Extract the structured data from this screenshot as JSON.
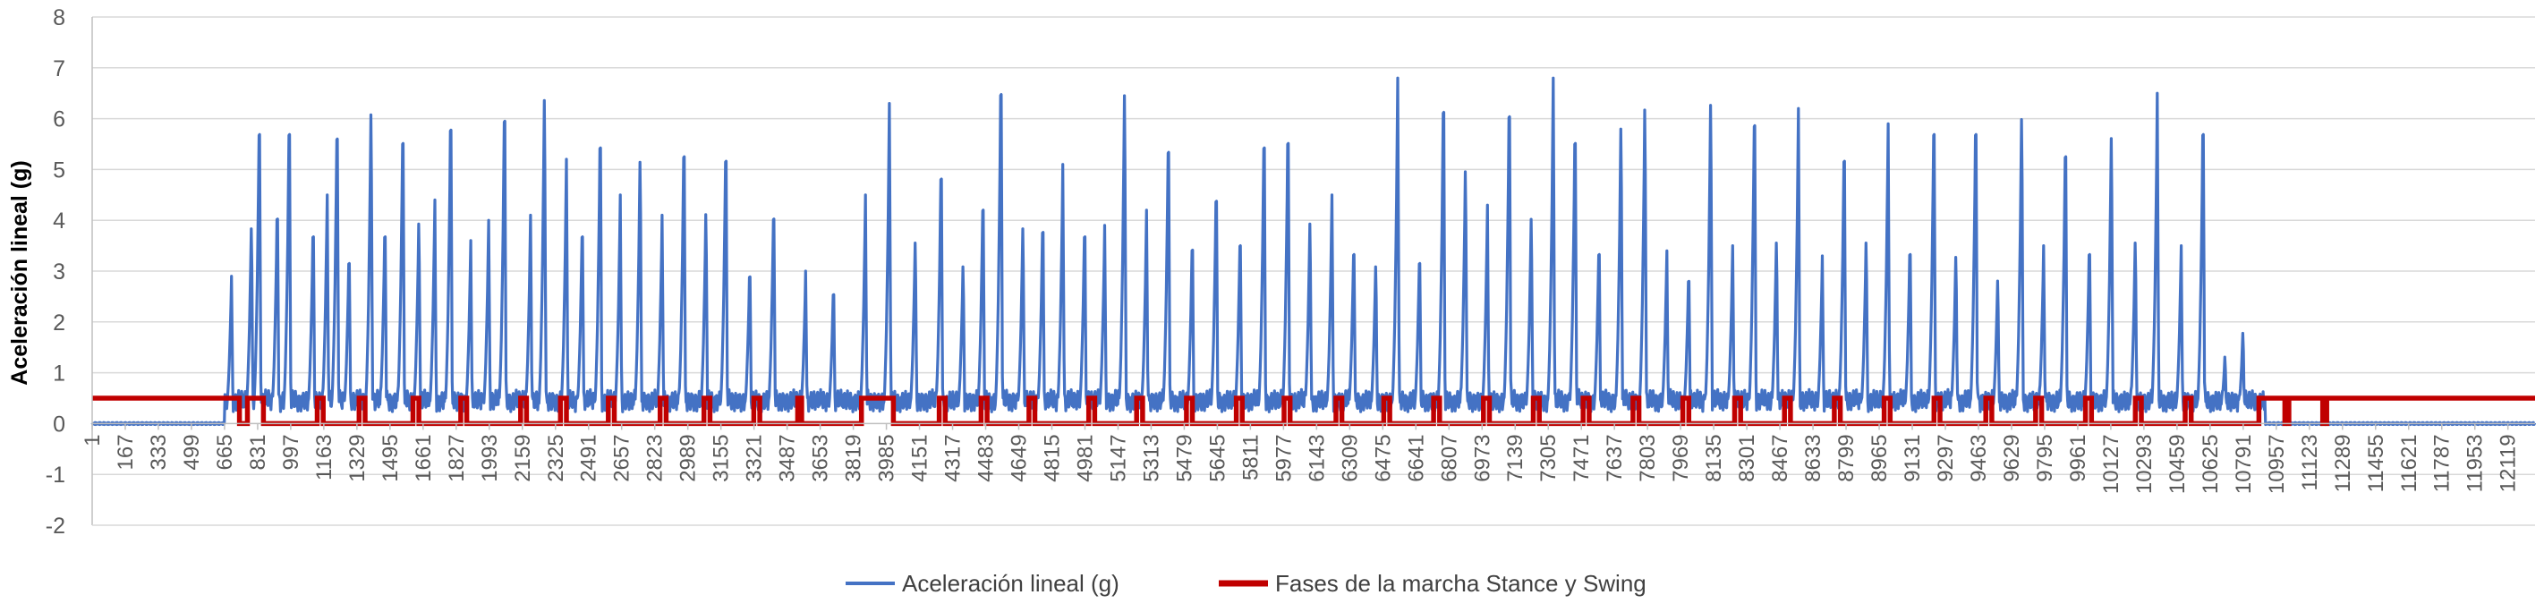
{
  "chart_data": {
    "type": "line",
    "xlabel": "",
    "ylabel": "Aceleración lineal (g)",
    "ylim": [
      -2,
      8
    ],
    "yticks": [
      -2,
      -1,
      0,
      1,
      2,
      3,
      4,
      5,
      6,
      7,
      8
    ],
    "xlim": [
      1,
      12255
    ],
    "xticks": [
      1,
      167,
      333,
      499,
      665,
      831,
      997,
      1163,
      1329,
      1495,
      1661,
      1827,
      1993,
      2159,
      2325,
      2491,
      2657,
      2823,
      2989,
      3155,
      3321,
      3487,
      3653,
      3819,
      3985,
      4151,
      4317,
      4483,
      4649,
      4815,
      4981,
      5147,
      5313,
      5479,
      5645,
      5811,
      5977,
      6143,
      6309,
      6475,
      6641,
      6807,
      6973,
      7139,
      7305,
      7471,
      7637,
      7803,
      7969,
      8135,
      8301,
      8467,
      8633,
      8799,
      8965,
      9131,
      9297,
      9463,
      9629,
      9795,
      9961,
      10127,
      10293,
      10459,
      10625,
      10791,
      10957,
      11123,
      11289,
      11455,
      11621,
      11787,
      11953,
      12119
    ],
    "gridlines": true,
    "legend_position": "bottom",
    "series": [
      {
        "name": "Aceleración lineal (g)",
        "color": "#4472C4",
        "baseline": 0.0,
        "active_range": [
          665,
          10900
        ],
        "peaks": [
          {
            "x": 700,
            "y": 2.9
          },
          {
            "x": 800,
            "y": 4.1
          },
          {
            "x": 840,
            "y": 6.5
          },
          {
            "x": 930,
            "y": 4.6
          },
          {
            "x": 990,
            "y": 6.5
          },
          {
            "x": 1110,
            "y": 4.2
          },
          {
            "x": 1180,
            "y": 4.5
          },
          {
            "x": 1230,
            "y": 6.4
          },
          {
            "x": 1290,
            "y": 3.6
          },
          {
            "x": 1400,
            "y": 6.5
          },
          {
            "x": 1470,
            "y": 4.2
          },
          {
            "x": 1560,
            "y": 6.3
          },
          {
            "x": 1640,
            "y": 4.2
          },
          {
            "x": 1720,
            "y": 4.4
          },
          {
            "x": 1800,
            "y": 6.6
          },
          {
            "x": 1900,
            "y": 3.6
          },
          {
            "x": 1990,
            "y": 4.0
          },
          {
            "x": 2070,
            "y": 6.8
          },
          {
            "x": 2200,
            "y": 4.1
          },
          {
            "x": 2270,
            "y": 6.8
          },
          {
            "x": 2380,
            "y": 5.2
          },
          {
            "x": 2460,
            "y": 4.2
          },
          {
            "x": 2550,
            "y": 6.2
          },
          {
            "x": 2650,
            "y": 4.5
          },
          {
            "x": 2750,
            "y": 5.5
          },
          {
            "x": 2860,
            "y": 4.1
          },
          {
            "x": 2970,
            "y": 6.0
          },
          {
            "x": 3080,
            "y": 4.4
          },
          {
            "x": 3180,
            "y": 5.9
          },
          {
            "x": 3300,
            "y": 3.3
          },
          {
            "x": 3420,
            "y": 4.6
          },
          {
            "x": 3580,
            "y": 3.0
          },
          {
            "x": 3720,
            "y": 2.9
          },
          {
            "x": 3880,
            "y": 4.5
          },
          {
            "x": 4000,
            "y": 6.3
          },
          {
            "x": 4130,
            "y": 3.8
          },
          {
            "x": 4260,
            "y": 5.5
          },
          {
            "x": 4370,
            "y": 3.3
          },
          {
            "x": 4470,
            "y": 4.8
          },
          {
            "x": 4560,
            "y": 7.4
          },
          {
            "x": 4670,
            "y": 4.1
          },
          {
            "x": 4770,
            "y": 4.3
          },
          {
            "x": 4870,
            "y": 5.1
          },
          {
            "x": 4980,
            "y": 4.2
          },
          {
            "x": 5080,
            "y": 3.9
          },
          {
            "x": 5180,
            "y": 6.9
          },
          {
            "x": 5290,
            "y": 4.2
          },
          {
            "x": 5400,
            "y": 6.1
          },
          {
            "x": 5520,
            "y": 3.9
          },
          {
            "x": 5640,
            "y": 5.0
          },
          {
            "x": 5760,
            "y": 4.0
          },
          {
            "x": 5880,
            "y": 6.2
          },
          {
            "x": 6000,
            "y": 6.3
          },
          {
            "x": 6110,
            "y": 4.2
          },
          {
            "x": 6220,
            "y": 4.5
          },
          {
            "x": 6330,
            "y": 3.8
          },
          {
            "x": 6440,
            "y": 3.3
          },
          {
            "x": 6550,
            "y": 6.8
          },
          {
            "x": 6660,
            "y": 3.6
          },
          {
            "x": 6780,
            "y": 7.0
          },
          {
            "x": 6890,
            "y": 5.3
          },
          {
            "x": 7000,
            "y": 4.3
          },
          {
            "x": 7110,
            "y": 6.9
          },
          {
            "x": 7220,
            "y": 4.3
          },
          {
            "x": 7330,
            "y": 6.8
          },
          {
            "x": 7440,
            "y": 6.3
          },
          {
            "x": 7560,
            "y": 3.8
          },
          {
            "x": 7670,
            "y": 6.2
          },
          {
            "x": 7790,
            "y": 6.6
          },
          {
            "x": 7900,
            "y": 3.4
          },
          {
            "x": 8010,
            "y": 3.2
          },
          {
            "x": 8120,
            "y": 6.7
          },
          {
            "x": 8230,
            "y": 3.5
          },
          {
            "x": 8340,
            "y": 6.7
          },
          {
            "x": 8450,
            "y": 3.8
          },
          {
            "x": 8560,
            "y": 6.2
          },
          {
            "x": 8680,
            "y": 3.3
          },
          {
            "x": 8790,
            "y": 5.9
          },
          {
            "x": 8900,
            "y": 3.8
          },
          {
            "x": 9010,
            "y": 5.9
          },
          {
            "x": 9120,
            "y": 3.8
          },
          {
            "x": 9240,
            "y": 6.5
          },
          {
            "x": 9350,
            "y": 3.5
          },
          {
            "x": 9450,
            "y": 6.5
          },
          {
            "x": 9560,
            "y": 3.0
          },
          {
            "x": 9680,
            "y": 6.4
          },
          {
            "x": 9790,
            "y": 3.5
          },
          {
            "x": 9900,
            "y": 6.0
          },
          {
            "x": 10020,
            "y": 3.8
          },
          {
            "x": 10130,
            "y": 6.0
          },
          {
            "x": 10250,
            "y": 3.8
          },
          {
            "x": 10360,
            "y": 6.5
          },
          {
            "x": 10480,
            "y": 3.5
          },
          {
            "x": 10590,
            "y": 6.5
          },
          {
            "x": 10700,
            "y": 1.4
          },
          {
            "x": 10790,
            "y": 1.9
          }
        ]
      },
      {
        "name": "Fases de la marcha Stance y Swing",
        "color": "#C00000",
        "segments": [
          {
            "x0": 1,
            "x1": 740,
            "y": 0.5
          },
          {
            "x0": 740,
            "x1": 780,
            "y": 0.0
          },
          {
            "x0": 780,
            "x1": 860,
            "y": 0.5
          },
          {
            "x0": 860,
            "x1": 1130,
            "y": 0.0
          },
          {
            "x0": 1130,
            "x1": 1160,
            "y": 0.5
          },
          {
            "x0": 1160,
            "x1": 1340,
            "y": 0.0
          },
          {
            "x0": 1340,
            "x1": 1370,
            "y": 0.5
          },
          {
            "x0": 1370,
            "x1": 1610,
            "y": 0.0
          },
          {
            "x0": 1610,
            "x1": 1640,
            "y": 0.5
          },
          {
            "x0": 1640,
            "x1": 1850,
            "y": 0.0
          },
          {
            "x0": 1850,
            "x1": 1880,
            "y": 0.5
          },
          {
            "x0": 1880,
            "x1": 2150,
            "y": 0.0
          },
          {
            "x0": 2150,
            "x1": 2180,
            "y": 0.5
          },
          {
            "x0": 2180,
            "x1": 2350,
            "y": 0.0
          },
          {
            "x0": 2350,
            "x1": 2380,
            "y": 0.5
          },
          {
            "x0": 2380,
            "x1": 2590,
            "y": 0.0
          },
          {
            "x0": 2590,
            "x1": 2620,
            "y": 0.5
          },
          {
            "x0": 2620,
            "x1": 2850,
            "y": 0.0
          },
          {
            "x0": 2850,
            "x1": 2880,
            "y": 0.5
          },
          {
            "x0": 2880,
            "x1": 3070,
            "y": 0.0
          },
          {
            "x0": 3070,
            "x1": 3100,
            "y": 0.5
          },
          {
            "x0": 3100,
            "x1": 3320,
            "y": 0.0
          },
          {
            "x0": 3320,
            "x1": 3350,
            "y": 0.5
          },
          {
            "x0": 3350,
            "x1": 3540,
            "y": 0.0
          },
          {
            "x0": 3540,
            "x1": 3560,
            "y": 0.5
          },
          {
            "x0": 3560,
            "x1": 3860,
            "y": 0.0
          },
          {
            "x0": 3860,
            "x1": 4020,
            "y": 0.5
          },
          {
            "x0": 4020,
            "x1": 4250,
            "y": 0.0
          },
          {
            "x0": 4250,
            "x1": 4280,
            "y": 0.5
          },
          {
            "x0": 4280,
            "x1": 4460,
            "y": 0.0
          },
          {
            "x0": 4460,
            "x1": 4490,
            "y": 0.5
          },
          {
            "x0": 4490,
            "x1": 4700,
            "y": 0.0
          },
          {
            "x0": 4700,
            "x1": 4730,
            "y": 0.5
          },
          {
            "x0": 4730,
            "x1": 5000,
            "y": 0.0
          },
          {
            "x0": 5000,
            "x1": 5030,
            "y": 0.5
          },
          {
            "x0": 5030,
            "x1": 5240,
            "y": 0.0
          },
          {
            "x0": 5240,
            "x1": 5270,
            "y": 0.5
          },
          {
            "x0": 5270,
            "x1": 5490,
            "y": 0.0
          },
          {
            "x0": 5490,
            "x1": 5520,
            "y": 0.5
          },
          {
            "x0": 5520,
            "x1": 5740,
            "y": 0.0
          },
          {
            "x0": 5740,
            "x1": 5770,
            "y": 0.5
          },
          {
            "x0": 5770,
            "x1": 5980,
            "y": 0.0
          },
          {
            "x0": 5980,
            "x1": 6010,
            "y": 0.5
          },
          {
            "x0": 6010,
            "x1": 6240,
            "y": 0.0
          },
          {
            "x0": 6240,
            "x1": 6270,
            "y": 0.5
          },
          {
            "x0": 6270,
            "x1": 6480,
            "y": 0.0
          },
          {
            "x0": 6480,
            "x1": 6510,
            "y": 0.5
          },
          {
            "x0": 6510,
            "x1": 6730,
            "y": 0.0
          },
          {
            "x0": 6730,
            "x1": 6760,
            "y": 0.5
          },
          {
            "x0": 6760,
            "x1": 6980,
            "y": 0.0
          },
          {
            "x0": 6980,
            "x1": 7010,
            "y": 0.5
          },
          {
            "x0": 7010,
            "x1": 7230,
            "y": 0.0
          },
          {
            "x0": 7230,
            "x1": 7260,
            "y": 0.5
          },
          {
            "x0": 7260,
            "x1": 7480,
            "y": 0.0
          },
          {
            "x0": 7480,
            "x1": 7510,
            "y": 0.5
          },
          {
            "x0": 7510,
            "x1": 7730,
            "y": 0.0
          },
          {
            "x0": 7730,
            "x1": 7760,
            "y": 0.5
          },
          {
            "x0": 7760,
            "x1": 7980,
            "y": 0.0
          },
          {
            "x0": 7980,
            "x1": 8010,
            "y": 0.5
          },
          {
            "x0": 8010,
            "x1": 8240,
            "y": 0.0
          },
          {
            "x0": 8240,
            "x1": 8270,
            "y": 0.5
          },
          {
            "x0": 8270,
            "x1": 8490,
            "y": 0.0
          },
          {
            "x0": 8490,
            "x1": 8520,
            "y": 0.5
          },
          {
            "x0": 8520,
            "x1": 8740,
            "y": 0.0
          },
          {
            "x0": 8740,
            "x1": 8770,
            "y": 0.5
          },
          {
            "x0": 8770,
            "x1": 8990,
            "y": 0.0
          },
          {
            "x0": 8990,
            "x1": 9020,
            "y": 0.5
          },
          {
            "x0": 9020,
            "x1": 9240,
            "y": 0.0
          },
          {
            "x0": 9240,
            "x1": 9270,
            "y": 0.5
          },
          {
            "x0": 9270,
            "x1": 9500,
            "y": 0.0
          },
          {
            "x0": 9500,
            "x1": 9530,
            "y": 0.5
          },
          {
            "x0": 9530,
            "x1": 9750,
            "y": 0.0
          },
          {
            "x0": 9750,
            "x1": 9780,
            "y": 0.5
          },
          {
            "x0": 9780,
            "x1": 10000,
            "y": 0.0
          },
          {
            "x0": 10000,
            "x1": 10030,
            "y": 0.5
          },
          {
            "x0": 10030,
            "x1": 10250,
            "y": 0.0
          },
          {
            "x0": 10250,
            "x1": 10280,
            "y": 0.5
          },
          {
            "x0": 10280,
            "x1": 10500,
            "y": 0.0
          },
          {
            "x0": 10500,
            "x1": 10530,
            "y": 0.5
          },
          {
            "x0": 10530,
            "x1": 10870,
            "y": 0.0
          },
          {
            "x0": 10870,
            "x1": 11000,
            "y": 0.5
          },
          {
            "x0": 11000,
            "x1": 11020,
            "y": 0.0
          },
          {
            "x0": 11020,
            "x1": 11190,
            "y": 0.5
          },
          {
            "x0": 11190,
            "x1": 11210,
            "y": 0.0
          },
          {
            "x0": 11210,
            "x1": 12255,
            "y": 0.5
          }
        ]
      }
    ]
  }
}
